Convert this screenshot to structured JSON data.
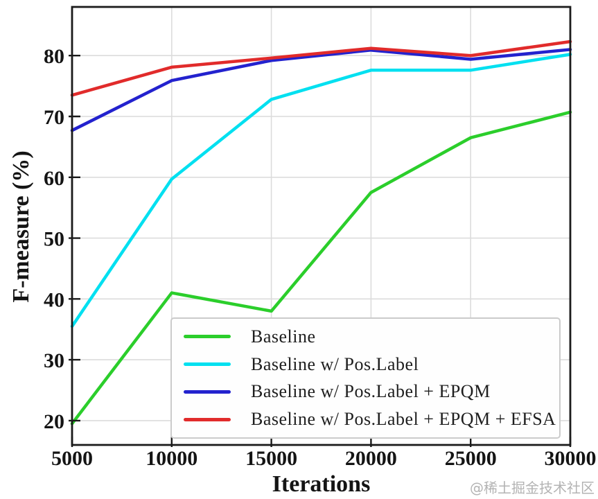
{
  "chart_data": {
    "type": "line",
    "title": "",
    "xlabel": "Iterations",
    "ylabel": "F-measure (%)",
    "x": [
      5000,
      10000,
      15000,
      20000,
      25000,
      30000
    ],
    "x_tick_labels": [
      "5000",
      "10000",
      "15000",
      "20000",
      "25000",
      "30000"
    ],
    "y_ticks": [
      20,
      30,
      40,
      50,
      60,
      70,
      80
    ],
    "y_tick_labels": [
      "20",
      "30",
      "40",
      "50",
      "60",
      "70",
      "80"
    ],
    "xlim": [
      5000,
      30000
    ],
    "ylim": [
      16,
      88
    ],
    "grid": true,
    "legend_position": "lower right",
    "series": [
      {
        "name": "Baseline",
        "color": "#2bce2b",
        "values": [
          19.5,
          41.0,
          38.0,
          57.5,
          66.5,
          70.7
        ]
      },
      {
        "name": "Baseline w/ Pos.Label",
        "color": "#00e0f0",
        "values": [
          35.5,
          59.7,
          72.8,
          77.6,
          77.6,
          80.2
        ]
      },
      {
        "name": "Baseline w/ Pos.Label + EPQM",
        "color": "#2322ce",
        "values": [
          67.7,
          75.9,
          79.2,
          80.9,
          79.4,
          81.0
        ]
      },
      {
        "name": "Baseline w/ Pos.Label + EPQM + EFSA",
        "color": "#e12b2b",
        "values": [
          73.5,
          78.1,
          79.6,
          81.2,
          80.0,
          82.3
        ]
      }
    ]
  },
  "watermark": "@稀土掘金技术社区",
  "colors": {
    "grid": "#dcdcdc",
    "spine": "#1a1a1a",
    "tick_label": "#141414",
    "legend_border": "#cbcbcb",
    "watermark": "#b3b3b3"
  }
}
